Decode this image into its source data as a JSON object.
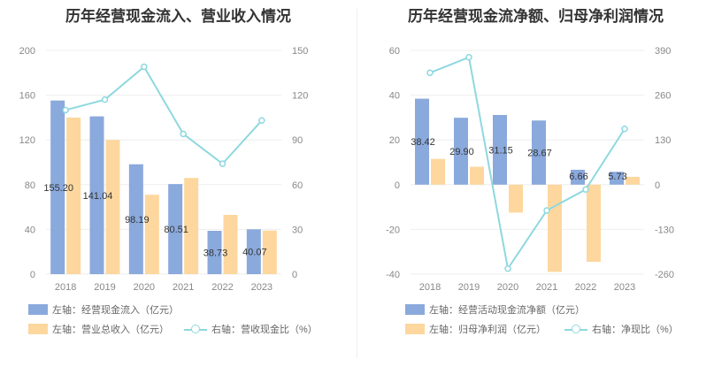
{
  "colors": {
    "series_a": "#8aa9dc",
    "series_b": "#fdd79e",
    "series_c": "#8ed8df",
    "grid": "#eeeeee",
    "axis_text": "#888888"
  },
  "left": {
    "title": "历年经营现金流入、营业收入情况",
    "legend": {
      "a": "左轴：经营现金流入（亿元）",
      "b": "左轴：营业总收入（亿元）",
      "c": "右轴：营收现金比（%）"
    }
  },
  "right": {
    "title": "历年经营现金流净额、归母净利润情况",
    "legend": {
      "a": "左轴：经营活动现金流净额（亿元）",
      "b": "左轴：归母净利润（亿元）",
      "c": "右轴：净现比（%）"
    }
  },
  "chart_data": [
    {
      "type": "bar",
      "title": "历年经营现金流入、营业收入情况",
      "categories": [
        "2018",
        "2019",
        "2020",
        "2021",
        "2022",
        "2023"
      ],
      "left_axis": {
        "ylim": [
          0,
          200
        ],
        "ticks": [
          "0",
          "40",
          "80",
          "120",
          "160",
          "200"
        ]
      },
      "right_axis": {
        "ylim": [
          0,
          150
        ],
        "ticks": [
          "0",
          "30",
          "60",
          "90",
          "120",
          "150"
        ]
      },
      "series": [
        {
          "name": "左轴：经营现金流入（亿元）",
          "kind": "bar",
          "axis": "left",
          "values": [
            155.2,
            141.04,
            98.19,
            80.51,
            38.73,
            40.07
          ],
          "labels": [
            "155.20",
            "141.04",
            "98.19",
            "80.51",
            "38.73",
            "40.07"
          ]
        },
        {
          "name": "左轴：营业总收入（亿元）",
          "kind": "bar",
          "axis": "left",
          "values": [
            140,
            120,
            71,
            86,
            53,
            39
          ]
        },
        {
          "name": "右轴：营收现金比（%）",
          "kind": "line",
          "axis": "right",
          "values": [
            110,
            117,
            139,
            94,
            74,
            103
          ]
        }
      ],
      "grid": true,
      "legend_position": "bottom-left"
    },
    {
      "type": "bar",
      "title": "历年经营现金流净额、归母净利润情况",
      "categories": [
        "2018",
        "2019",
        "2020",
        "2021",
        "2022",
        "2023"
      ],
      "left_axis": {
        "ylim": [
          -40,
          60
        ],
        "ticks": [
          "-40",
          "-20",
          "0",
          "20",
          "40",
          "60"
        ]
      },
      "right_axis": {
        "ylim": [
          -260,
          390
        ],
        "ticks": [
          "-260",
          "-130",
          "0",
          "130",
          "260",
          "390"
        ]
      },
      "series": [
        {
          "name": "左轴：经营活动现金流净额（亿元）",
          "kind": "bar",
          "axis": "left",
          "values": [
            38.42,
            29.9,
            31.15,
            28.67,
            6.66,
            5.73
          ],
          "labels": [
            "38.42",
            "29.90",
            "31.15",
            "28.67",
            "6.66",
            "5.73"
          ]
        },
        {
          "name": "左轴：归母净利润（亿元）",
          "kind": "bar",
          "axis": "left",
          "values": [
            11.5,
            8.0,
            -12.5,
            -39,
            -34.5,
            3.5
          ]
        },
        {
          "name": "右轴：净现比（%）",
          "kind": "line",
          "axis": "right",
          "values": [
            325,
            370,
            -244,
            -75,
            -14,
            162
          ]
        }
      ],
      "grid": true,
      "legend_position": "bottom-left"
    }
  ]
}
